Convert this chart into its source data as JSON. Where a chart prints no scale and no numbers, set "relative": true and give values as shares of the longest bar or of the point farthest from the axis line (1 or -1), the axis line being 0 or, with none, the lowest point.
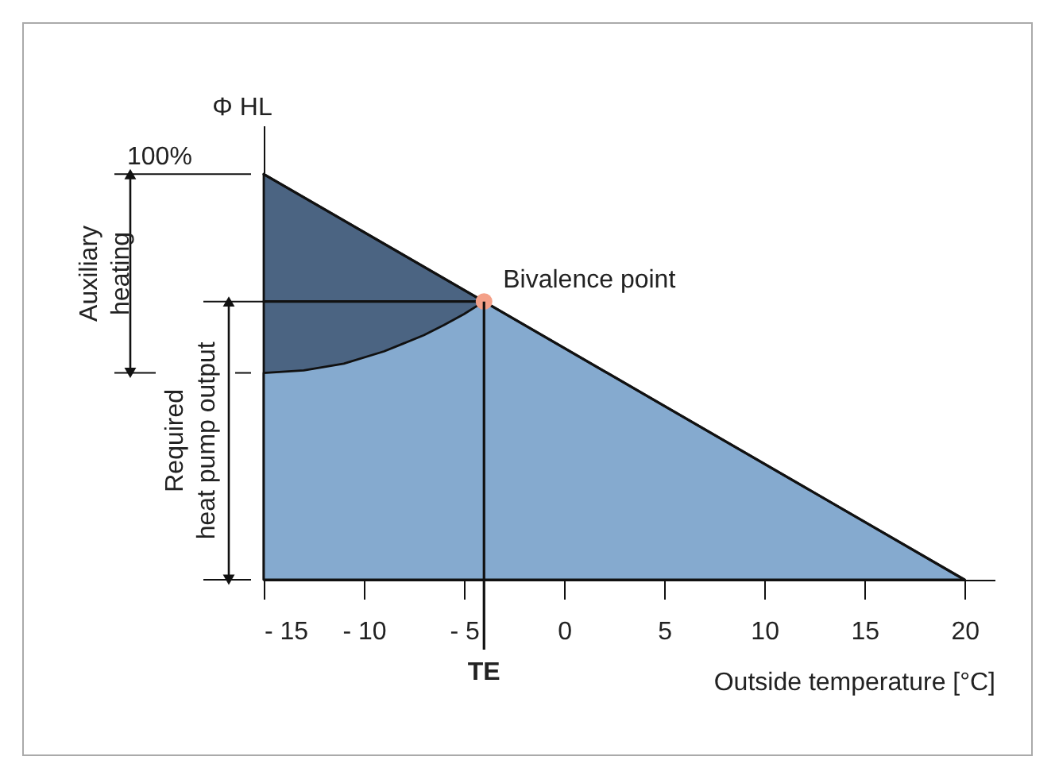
{
  "chart_data": {
    "type": "area",
    "relative": true,
    "xlabel": "Outside temperature [°C]",
    "ylabel": "Φ HL",
    "xlim": [
      -15,
      21.5
    ],
    "ylim": [
      0,
      1.12
    ],
    "xticks": [
      {
        "value": -15,
        "label": "- 15"
      },
      {
        "value": -10,
        "label": "- 10"
      },
      {
        "value": -5,
        "label": "- 5"
      },
      0,
      5,
      10,
      15,
      20
    ],
    "series": [
      {
        "color": "#4b6482",
        "x": [
          -15,
          -4
        ],
        "values": [
          1,
          0.686
        ]
      },
      {
        "color": "#85aacf",
        "x": [
          -15,
          -13,
          -11,
          -9,
          -7,
          -6,
          -5,
          -4,
          20
        ],
        "values": [
          0.51,
          0.516,
          0.533,
          0.563,
          0.603,
          0.628,
          0.655,
          0.686,
          0
        ]
      },
      {
        "type": "line",
        "color": "#111111",
        "x": [
          -15,
          20
        ],
        "values": [
          1,
          0
        ]
      },
      {
        "type": "line",
        "color": "#111111",
        "x": [
          -15,
          -4
        ],
        "values": [
          0.686,
          0.686
        ]
      },
      {
        "type": "scatter",
        "color": "#f4a088",
        "x": [
          -4
        ],
        "values": [
          0.686
        ]
      }
    ],
    "annotations": [
      "100%",
      {
        "text": "Bivalence point",
        "x": -4,
        "y": 0.686
      },
      {
        "text": "TE",
        "x": -4
      },
      "Auxiliary heating",
      "Required heat pump output"
    ]
  }
}
